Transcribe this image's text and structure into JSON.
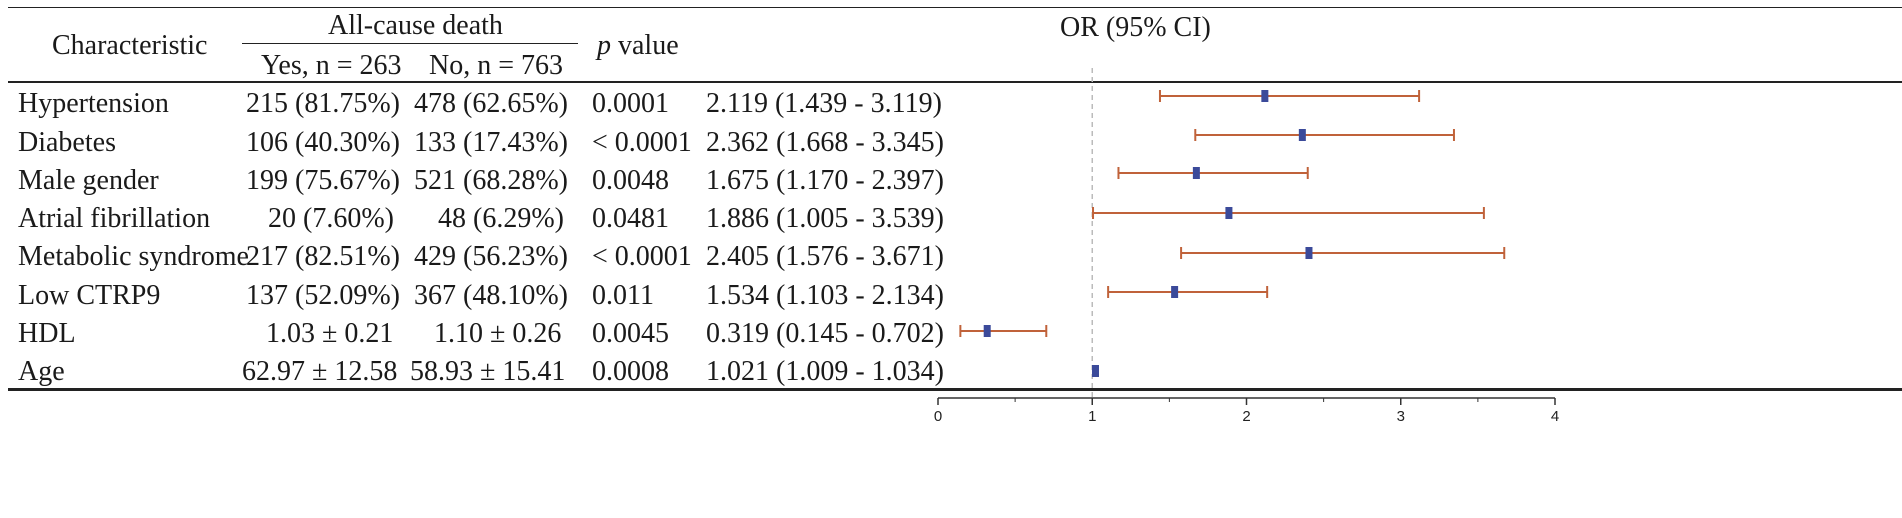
{
  "table": {
    "header": {
      "characteristic": "Characteristic",
      "group": "All-cause death",
      "yes": "Yes, n = 263",
      "no": "No, n = 763",
      "p_italic": "p",
      "p_rest": " value",
      "or": "OR (95% CI)"
    },
    "rows": [
      {
        "label": "Hypertension",
        "yes": "215 (81.75%)",
        "no": "478 (62.65%)",
        "p": "0.0001",
        "or": "2.119 (1.439 - 3.119)"
      },
      {
        "label": "Diabetes",
        "yes": "106 (40.30%)",
        "no": "133 (17.43%)",
        "p": "< 0.0001",
        "or": "2.362 (1.668 - 3.345)"
      },
      {
        "label": "Male gender",
        "yes": "199 (75.67%)",
        "no": "521 (68.28%)",
        "p": "0.0048",
        "or": "1.675 (1.170 - 2.397)"
      },
      {
        "label": "Atrial fibrillation",
        "yes": "20 (7.60%)",
        "no": "48 (6.29%)",
        "p": "0.0481",
        "or": "1.886 (1.005 - 3.539)"
      },
      {
        "label": "Metabolic syndrome",
        "yes": "217 (82.51%)",
        "no": "429 (56.23%)",
        "p": "< 0.0001",
        "or": "2.405 (1.576 - 3.671)"
      },
      {
        "label": "Low CTRP9",
        "yes": "137 (52.09%)",
        "no": "367 (48.10%)",
        "p": "0.011",
        "or": "1.534 (1.103 - 2.134)"
      },
      {
        "label": "HDL",
        "yes": "1.03 ± 0.21",
        "no": "1.10 ± 0.26",
        "p": "0.0045",
        "or": "0.319 (0.145 - 0.702)"
      },
      {
        "label": "Age",
        "yes": "62.97 ± 12.58",
        "no": "58.93 ± 15.41",
        "p": "0.0008",
        "or": "1.021 (1.009 - 1.034)"
      }
    ]
  },
  "chart_data": {
    "type": "forest",
    "categories": [
      "Hypertension",
      "Diabetes",
      "Male gender",
      "Atrial fibrillation",
      "Metabolic syndrome",
      "Low CTRP9",
      "HDL",
      "Age"
    ],
    "estimates": [
      2.119,
      2.362,
      1.675,
      1.886,
      2.405,
      1.534,
      0.319,
      1.021
    ],
    "ci_low": [
      1.439,
      1.668,
      1.17,
      1.005,
      1.576,
      1.103,
      0.145,
      1.009
    ],
    "ci_high": [
      3.119,
      3.345,
      2.397,
      3.539,
      3.671,
      2.134,
      0.702,
      1.034
    ],
    "xlim": [
      0,
      4
    ],
    "xticks": [
      0,
      1,
      2,
      3,
      4
    ],
    "reference_line": 1,
    "colors": {
      "ci": "#c0623a",
      "point": "#3b4a9a",
      "reference": "#bbbbbb",
      "axis": "#333333"
    }
  }
}
